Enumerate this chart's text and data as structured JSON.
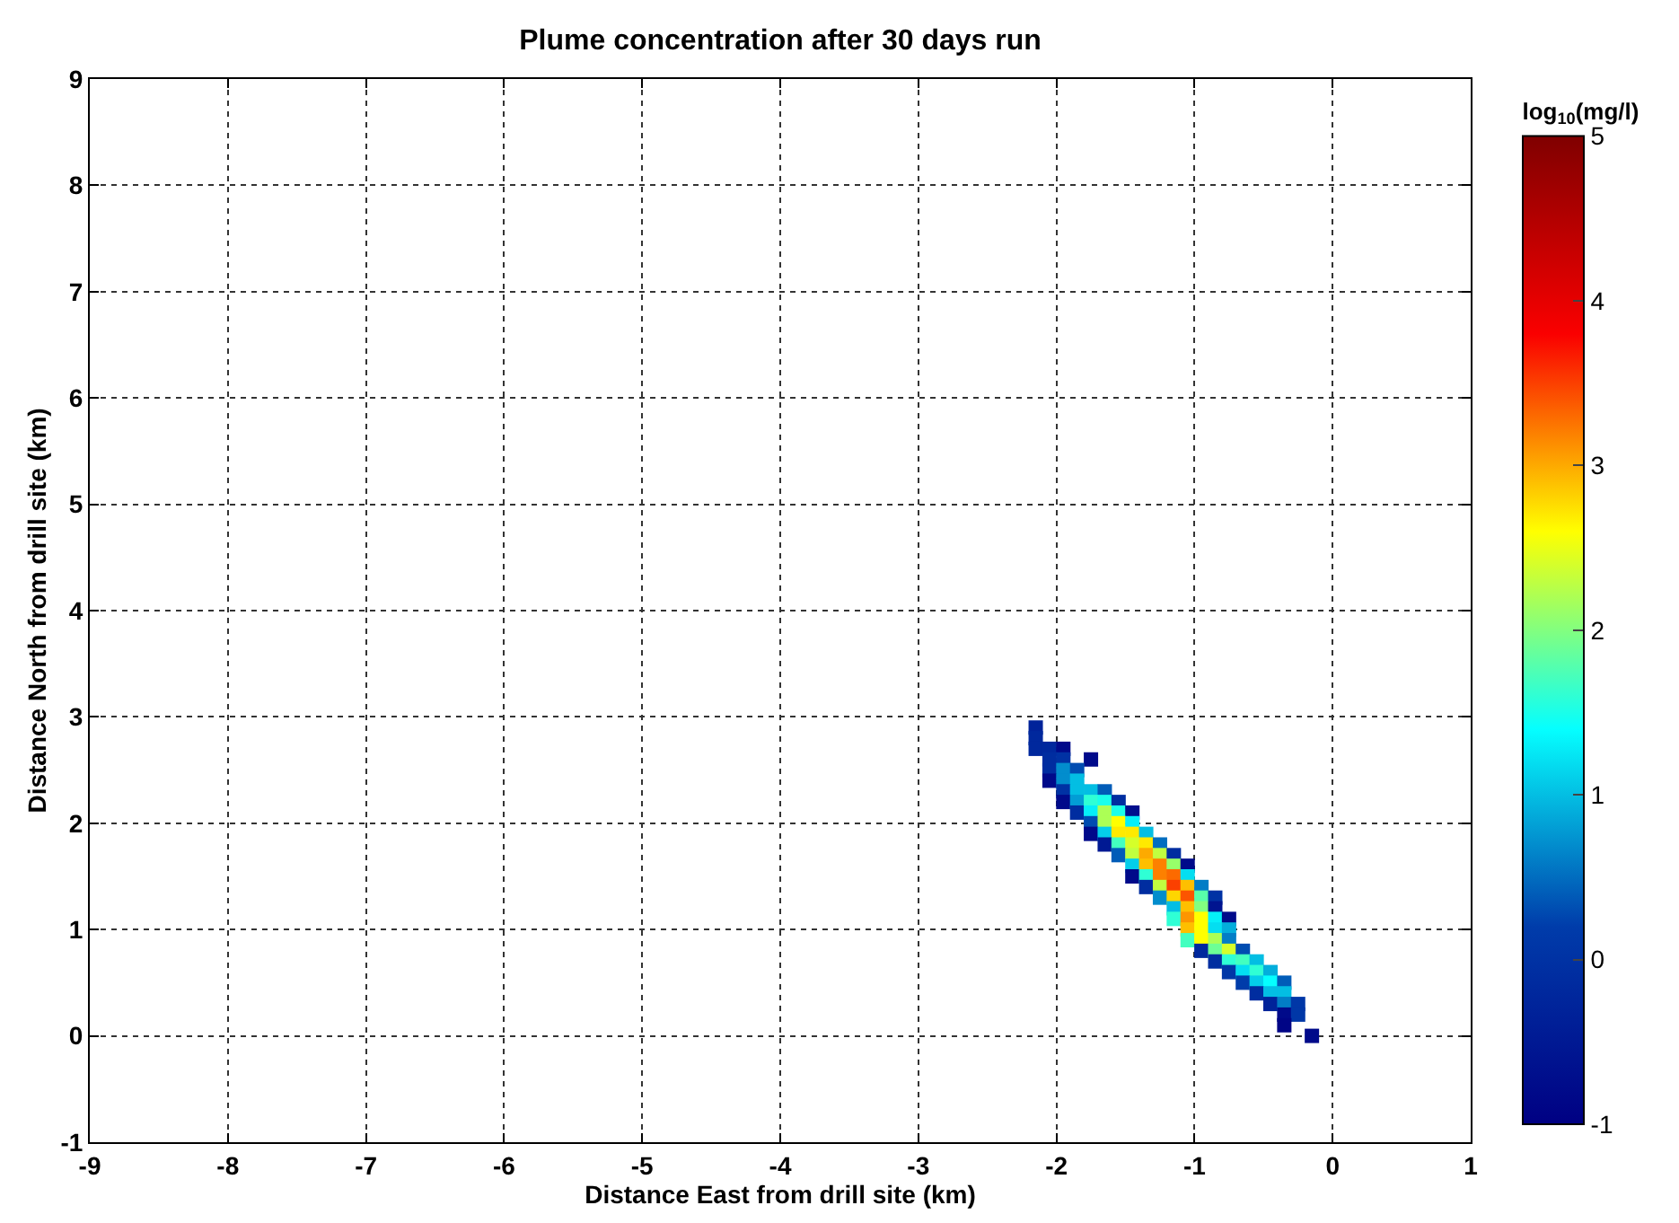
{
  "chart_data": {
    "type": "scatter",
    "title": "Plume concentration after 30 days run",
    "xlabel": "Distance East from drill site (km)",
    "ylabel": "Distance North from drill site (km)",
    "clabel": "log$_{10}$(mg/l)",
    "xlim": [
      -9,
      1
    ],
    "xticks": [
      -9,
      -8,
      -7,
      -6,
      -5,
      -4,
      -3,
      -2,
      -1,
      0,
      1
    ],
    "ylim": [
      -1,
      9
    ],
    "yticks": [
      -1,
      0,
      1,
      2,
      3,
      4,
      5,
      6,
      7,
      8,
      9
    ],
    "clim": [
      -1,
      5
    ],
    "cticks": [
      -1,
      0,
      1,
      2,
      3,
      4,
      5
    ],
    "grid": true,
    "marker": "square",
    "x": [
      -2.15,
      -2.15,
      -2.15,
      -2.05,
      -1.95,
      -2.05,
      -1.95,
      -1.75,
      -2.05,
      -1.95,
      -1.85,
      -2.05,
      -1.95,
      -1.85,
      -1.95,
      -1.85,
      -1.75,
      -1.65,
      -1.95,
      -1.85,
      -1.75,
      -1.65,
      -1.55,
      -1.85,
      -1.75,
      -1.65,
      -1.55,
      -1.45,
      -1.75,
      -1.65,
      -1.55,
      -1.45,
      -1.75,
      -1.65,
      -1.55,
      -1.45,
      -1.35,
      -1.65,
      -1.55,
      -1.45,
      -1.35,
      -1.25,
      -1.55,
      -1.45,
      -1.35,
      -1.25,
      -1.15,
      -1.45,
      -1.35,
      -1.25,
      -1.15,
      -1.05,
      -1.45,
      -1.35,
      -1.25,
      -1.15,
      -1.05,
      -1.35,
      -1.25,
      -1.15,
      -1.05,
      -0.95,
      -1.25,
      -1.15,
      -1.05,
      -0.95,
      -0.85,
      -1.15,
      -1.05,
      -0.95,
      -0.85,
      -1.15,
      -1.05,
      -0.95,
      -0.85,
      -0.75,
      -1.05,
      -0.95,
      -0.85,
      -0.75,
      -1.05,
      -0.95,
      -0.85,
      -0.75,
      -0.95,
      -0.85,
      -0.75,
      -0.65,
      -0.85,
      -0.75,
      -0.65,
      -0.55,
      -0.75,
      -0.65,
      -0.55,
      -0.45,
      -0.65,
      -0.55,
      -0.45,
      -0.35,
      -0.55,
      -0.45,
      -0.35,
      -0.45,
      -0.35,
      -0.25,
      -0.35,
      -0.25,
      -0.35,
      -0.15
    ],
    "values": [
      2.9,
      2.8,
      2.7,
      2.7,
      2.7,
      2.6,
      2.6,
      2.6,
      2.5,
      2.5,
      2.5,
      2.4,
      2.4,
      2.4,
      2.3,
      2.3,
      2.3,
      2.3,
      2.2,
      2.2,
      2.2,
      2.2,
      2.2,
      2.1,
      2.1,
      2.1,
      2.1,
      2.1,
      2.0,
      2.0,
      2.0,
      2.0,
      1.9,
      1.9,
      1.9,
      1.9,
      1.9,
      1.8,
      1.8,
      1.8,
      1.8,
      1.8,
      1.7,
      1.7,
      1.7,
      1.7,
      1.7,
      1.6,
      1.6,
      1.6,
      1.6,
      1.6,
      1.5,
      1.5,
      1.5,
      1.5,
      1.5,
      1.4,
      1.4,
      1.4,
      1.4,
      1.4,
      1.3,
      1.3,
      1.3,
      1.3,
      1.3,
      1.2,
      1.2,
      1.2,
      1.2,
      1.1,
      1.1,
      1.1,
      1.1,
      1.1,
      1.0,
      1.0,
      1.0,
      1.0,
      0.9,
      0.9,
      0.9,
      0.9,
      0.8,
      0.8,
      0.8,
      0.8,
      0.7,
      0.7,
      0.7,
      0.7,
      0.6,
      0.6,
      0.6,
      0.6,
      0.5,
      0.5,
      0.5,
      0.5,
      0.4,
      0.4,
      0.4,
      0.3,
      0.3,
      0.3,
      0.2,
      0.2,
      0.1,
      0.0
    ],
    "cvalues": [
      -0.3,
      -0.2,
      -0.2,
      -0.2,
      -0.8,
      -0.1,
      0,
      -0.8,
      -0.1,
      0.7,
      0.3,
      -0.8,
      0.7,
      1.0,
      0,
      1.0,
      1.0,
      0.4,
      -0.8,
      0.8,
      1.6,
      1.5,
      -0.1,
      -0.1,
      1.3,
      2.2,
      1.5,
      -0.7,
      0.3,
      2.2,
      2.6,
      1.3,
      -0.8,
      1.1,
      2.7,
      2.7,
      1.0,
      -0.5,
      1.7,
      2.4,
      2.7,
      0.5,
      0.4,
      2.3,
      3.0,
      2.3,
      -0.1,
      1.1,
      2.9,
      3.2,
      2.1,
      -0.8,
      -0.8,
      1.6,
      3.2,
      3.3,
      1.2,
      -0.1,
      2.3,
      3.5,
      2.9,
      0.6,
      0.7,
      2.8,
      3.4,
      1.8,
      0.0,
      1.0,
      2.9,
      2.0,
      -0.6,
      1.6,
      3.1,
      2.6,
      1.3,
      -0.8,
      2.9,
      2.6,
      1.2,
      0.9,
      1.7,
      2.6,
      2.2,
      0.6,
      -0.2,
      1.9,
      2.4,
      0.3,
      -0.1,
      1.6,
      1.7,
      1.0,
      0.1,
      1.2,
      1.6,
      0.9,
      0.2,
      1.1,
      1.4,
      0.4,
      -0.1,
      1.0,
      1.0,
      -0.3,
      0.6,
      0.1,
      -0.8,
      0.1,
      -0.9,
      -0.8
    ]
  }
}
